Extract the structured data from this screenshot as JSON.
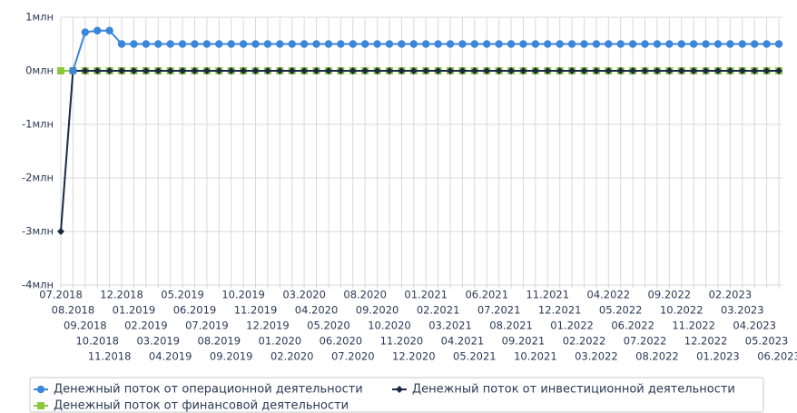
{
  "chart_data": {
    "type": "line",
    "categories": [
      "07.2018",
      "08.2018",
      "09.2018",
      "10.2018",
      "11.2018",
      "12.2018",
      "01.2019",
      "02.2019",
      "03.2019",
      "04.2019",
      "05.2019",
      "06.2019",
      "07.2019",
      "08.2019",
      "09.2019",
      "10.2019",
      "11.2019",
      "12.2019",
      "01.2020",
      "02.2020",
      "03.2020",
      "04.2020",
      "05.2020",
      "06.2020",
      "07.2020",
      "08.2020",
      "09.2020",
      "10.2020",
      "11.2020",
      "12.2020",
      "01.2021",
      "02.2021",
      "03.2021",
      "04.2021",
      "05.2021",
      "06.2021",
      "07.2021",
      "08.2021",
      "09.2021",
      "10.2021",
      "11.2021",
      "12.2021",
      "01.2022",
      "02.2022",
      "03.2022",
      "04.2022",
      "05.2022",
      "06.2022",
      "07.2022",
      "08.2022",
      "09.2022",
      "10.2022",
      "11.2022",
      "12.2022",
      "01.2023",
      "02.2023",
      "03.2023",
      "04.2023",
      "05.2023",
      "06.2023"
    ],
    "series": [
      {
        "name": "Денежный поток от операционной деятельности",
        "color": "#3b86d8",
        "marker": "circle",
        "values": [
          null,
          0,
          720000,
          750000,
          750000,
          500000,
          500000,
          500000,
          500000,
          500000,
          500000,
          500000,
          500000,
          500000,
          500000,
          500000,
          500000,
          500000,
          500000,
          500000,
          500000,
          500000,
          500000,
          500000,
          500000,
          500000,
          500000,
          500000,
          500000,
          500000,
          500000,
          500000,
          500000,
          500000,
          500000,
          500000,
          500000,
          500000,
          500000,
          500000,
          500000,
          500000,
          500000,
          500000,
          500000,
          500000,
          500000,
          500000,
          500000,
          500000,
          500000,
          500000,
          500000,
          500000,
          500000,
          500000,
          500000,
          500000,
          500000,
          500000
        ]
      },
      {
        "name": "Денежный поток от инвестиционной деятельности",
        "color": "#1a2a44",
        "marker": "diamond",
        "values": [
          -3000000,
          0,
          0,
          0,
          0,
          0,
          0,
          0,
          0,
          0,
          0,
          0,
          0,
          0,
          0,
          0,
          0,
          0,
          0,
          0,
          0,
          0,
          0,
          0,
          0,
          0,
          0,
          0,
          0,
          0,
          0,
          0,
          0,
          0,
          0,
          0,
          0,
          0,
          0,
          0,
          0,
          0,
          0,
          0,
          0,
          0,
          0,
          0,
          0,
          0,
          0,
          0,
          0,
          0,
          0,
          0,
          0,
          0,
          0,
          0
        ]
      },
      {
        "name": "Денежный поток от финансовой деятельности",
        "color": "#8dc63f",
        "marker": "square",
        "values": [
          0,
          0,
          0,
          0,
          0,
          0,
          0,
          0,
          0,
          0,
          0,
          0,
          0,
          0,
          0,
          0,
          0,
          0,
          0,
          0,
          0,
          0,
          0,
          0,
          0,
          0,
          0,
          0,
          0,
          0,
          0,
          0,
          0,
          0,
          0,
          0,
          0,
          0,
          0,
          0,
          0,
          0,
          0,
          0,
          0,
          0,
          0,
          0,
          0,
          0,
          0,
          0,
          0,
          0,
          0,
          0,
          0,
          0,
          0,
          0
        ]
      }
    ],
    "ylim": [
      -4000000,
      1000000
    ],
    "yticks": [
      {
        "value": 1000000,
        "label": "1млн"
      },
      {
        "value": 0,
        "label": "0млн"
      },
      {
        "value": -1000000,
        "label": "-1млн"
      },
      {
        "value": -2000000,
        "label": "-2млн"
      },
      {
        "value": -3000000,
        "label": "-3млн"
      },
      {
        "value": -4000000,
        "label": "-4млн"
      }
    ],
    "grid": true,
    "legend": "bottom"
  }
}
